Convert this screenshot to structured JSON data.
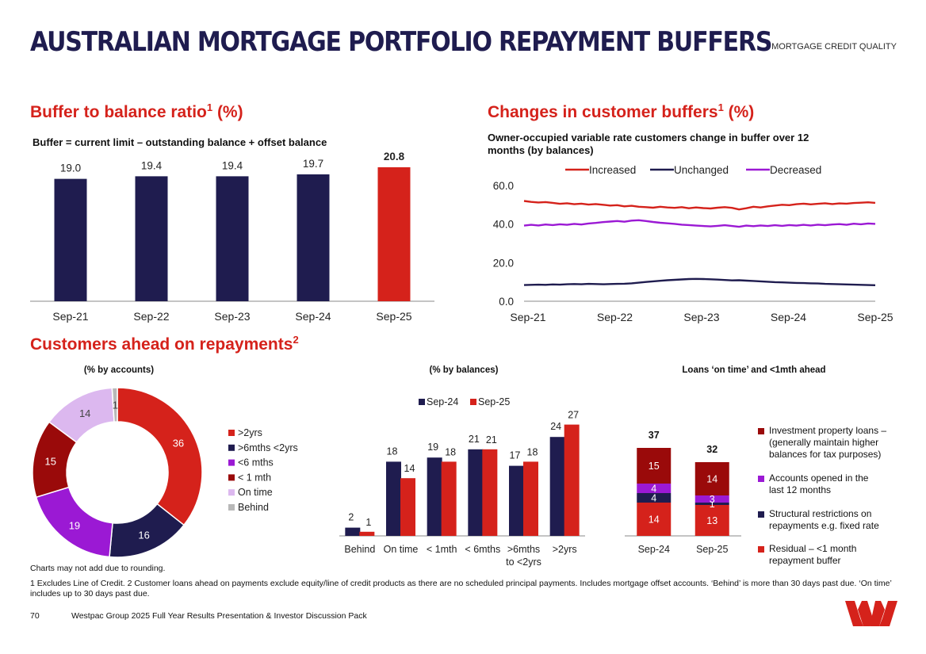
{
  "header": {
    "title": "AUSTRALIAN MORTGAGE PORTFOLIO REPAYMENT BUFFERS",
    "section": "MORTGAGE CREDIT QUALITY"
  },
  "colors": {
    "navy": "#1f1c4f",
    "red": "#d5221b",
    "dark_red": "#9a0a0a",
    "purple": "#9b19d4",
    "lavender": "#dcb8ef",
    "grey": "#b8b8b8"
  },
  "buffer_section": {
    "heading": "Buffer to balance ratio",
    "heading_sup": "1",
    "heading_suffix": " (%)",
    "subtitle": "Buffer = current limit – outstanding balance + offset balance"
  },
  "changes_section": {
    "heading": "Changes in customer buffers",
    "heading_sup": "1",
    "heading_suffix": " (%)",
    "subtitle": "Owner-occupied variable rate customers change in buffer over 12 months (by balances)"
  },
  "ahead_section": {
    "heading": "Customers ahead on repayments",
    "heading_sup": "2",
    "donut_title": "(% by accounts)",
    "bars_title": "(% by balances)",
    "stack_title": "Loans ‘on time’ and <1mth ahead"
  },
  "chart_data": [
    {
      "id": "buffer_ratio",
      "type": "bar",
      "categories": [
        "Sep-21",
        "Sep-22",
        "Sep-23",
        "Sep-24",
        "Sep-25"
      ],
      "values": [
        19.0,
        19.4,
        19.4,
        19.7,
        20.8
      ],
      "labels": [
        "19.0",
        "19.4",
        "19.4",
        "19.7",
        "20.8"
      ],
      "highlight_last": true,
      "title": "Buffer to balance ratio (%)"
    },
    {
      "id": "buffer_changes",
      "type": "line",
      "x_ticks": [
        "Sep-21",
        "Sep-22",
        "Sep-23",
        "Sep-24",
        "Sep-25"
      ],
      "y_ticks": [
        "0.0",
        "20.0",
        "40.0",
        "60.0"
      ],
      "ylim": [
        0,
        60
      ],
      "series": [
        {
          "name": "Increased",
          "color": "#d5221b",
          "values": [
            52,
            51.5,
            51.2,
            51.4,
            51,
            50.5,
            50.8,
            50.3,
            50.6,
            50.1,
            50.4,
            50,
            49.6,
            49.8,
            49.2,
            49.5,
            49,
            48.8,
            48.5,
            49,
            48.6,
            48.4,
            48.8,
            48.2,
            48.6,
            48.3,
            48.1,
            48.5,
            48.8,
            48.4,
            47.6,
            48.2,
            49,
            48.6,
            49.2,
            49.6,
            50,
            49.8,
            50.3,
            50.6,
            50.2,
            50.5,
            50.8,
            50.4,
            50.7,
            50.6,
            50.9,
            51.1,
            51.3,
            51
          ]
        },
        {
          "name": "Unchanged",
          "color": "#1f1c4f",
          "values": [
            8.4,
            8.5,
            8.6,
            8.5,
            8.7,
            8.6,
            8.8,
            8.9,
            8.8,
            9,
            8.9,
            8.8,
            8.9,
            9,
            9.1,
            9.3,
            9.6,
            10,
            10.3,
            10.6,
            10.9,
            11.1,
            11.3,
            11.5,
            11.6,
            11.5,
            11.4,
            11.2,
            11,
            10.8,
            10.9,
            10.7,
            10.5,
            10.3,
            10.1,
            9.9,
            9.8,
            9.6,
            9.5,
            9.4,
            9.3,
            9.2,
            9,
            8.9,
            8.8,
            8.7,
            8.6,
            8.5,
            8.4,
            8.3
          ]
        },
        {
          "name": "Decreased",
          "color": "#9b19d4",
          "values": [
            39.2,
            39.6,
            39.3,
            39.8,
            39.5,
            39.9,
            39.6,
            40.1,
            39.8,
            40.3,
            40.6,
            41,
            41.3,
            41.6,
            41.2,
            41.8,
            42,
            41.6,
            41.1,
            40.7,
            40.4,
            40.1,
            39.7,
            39.5,
            39.2,
            39,
            38.8,
            39.1,
            39.4,
            39,
            38.6,
            39.2,
            38.9,
            39.3,
            39,
            39.4,
            39.1,
            39.5,
            39.2,
            39.6,
            39.3,
            39.7,
            39.4,
            39.8,
            40,
            39.6,
            40.2,
            39.9,
            40.3,
            40.1
          ]
        }
      ]
    },
    {
      "id": "ahead_accounts",
      "type": "pie",
      "title": "(% by accounts)",
      "slices": [
        {
          "name": ">2yrs",
          "value": 36,
          "label": "36",
          "color": "#d5221b"
        },
        {
          "name": ">6mths  <2yrs",
          "value": 16,
          "label": "16",
          "color": "#1f1c4f"
        },
        {
          "name": "<6 mths",
          "value": 19,
          "label": "19",
          "color": "#9b19d4"
        },
        {
          "name": "< 1 mth",
          "value": 15,
          "label": "15",
          "color": "#9a0a0a"
        },
        {
          "name": "On time",
          "value": 14,
          "label": "14",
          "color": "#dcb8ef"
        },
        {
          "name": "Behind",
          "value": 1,
          "label": "1",
          "color": "#b8b8b8"
        }
      ]
    },
    {
      "id": "ahead_balances",
      "type": "bar",
      "title": "(% by balances)",
      "categories": [
        "Behind",
        "On time",
        "< 1mth",
        "< 6mths",
        ">6mths to <2yrs",
        ">2yrs"
      ],
      "category_lines": [
        [
          "Behind"
        ],
        [
          "On time"
        ],
        [
          "< 1mth"
        ],
        [
          "< 6mths"
        ],
        [
          ">6mths",
          "to <2yrs"
        ],
        [
          ">2yrs"
        ]
      ],
      "ylim": [
        0,
        30
      ],
      "series": [
        {
          "name": "Sep-24",
          "color": "#1f1c4f",
          "values": [
            2,
            18,
            19,
            21,
            17,
            24
          ],
          "labels": [
            "2",
            "18",
            "19",
            "21",
            "17",
            "24"
          ]
        },
        {
          "name": "Sep-25",
          "color": "#d5221b",
          "values": [
            1,
            14,
            18,
            21,
            18,
            27
          ],
          "labels": [
            "1",
            "14",
            "18",
            "21",
            "18",
            "27"
          ]
        }
      ]
    },
    {
      "id": "on_time_stack",
      "type": "bar",
      "stacked": true,
      "title": "Loans ‘on time’ and <1mth ahead",
      "categories": [
        "Sep-24",
        "Sep-25"
      ],
      "totals": [
        "37",
        "32"
      ],
      "ylim": [
        0,
        37
      ],
      "series": [
        {
          "name": "Residual – <1 month repayment buffer",
          "color": "#d5221b",
          "values": [
            14,
            13
          ],
          "labels": [
            "14",
            "13"
          ]
        },
        {
          "name": "Structural restrictions on repayments e.g. fixed rate",
          "color": "#1f1c4f",
          "values": [
            4,
            1
          ],
          "labels": [
            "4",
            "1"
          ]
        },
        {
          "name": "Accounts opened in the last 12 months",
          "color": "#9b19d4",
          "values": [
            4,
            3
          ],
          "labels": [
            "4",
            "3"
          ]
        },
        {
          "name": "Investment property loans – (generally maintain higher balances for tax purposes)",
          "color": "#9a0a0a",
          "values": [
            15,
            14
          ],
          "labels": [
            "15",
            "14"
          ]
        }
      ]
    }
  ],
  "stack_legend": [
    {
      "lines": [
        "Investment property loans –",
        "(generally maintain higher",
        "balances for tax purposes)"
      ],
      "color": "#9a0a0a"
    },
    {
      "lines": [
        "Accounts opened in the",
        "last 12 months"
      ],
      "color": "#9b19d4"
    },
    {
      "lines": [
        "Structural restrictions on",
        "repayments e.g. fixed rate"
      ],
      "color": "#1f1c4f"
    },
    {
      "lines": [
        "Residual – <1 month",
        "repayment buffer"
      ],
      "color": "#d5221b"
    }
  ],
  "footer": {
    "rounding_note": "Charts may not add due to rounding.",
    "footnotes": "1 Excludes Line of Credit. 2 Customer loans ahead on payments exclude equity/line of credit products as there are no scheduled principal payments. Includes mortgage offset accounts. ‘Behind’ is more than 30 days past due. ‘On time’ includes up to 30 days past due.",
    "page_number": "70",
    "doc_title": "Westpac Group 2025 Full Year Results Presentation & Investor Discussion Pack"
  },
  "logo": {
    "name": "westpac-logo",
    "color": "#d5221b"
  }
}
